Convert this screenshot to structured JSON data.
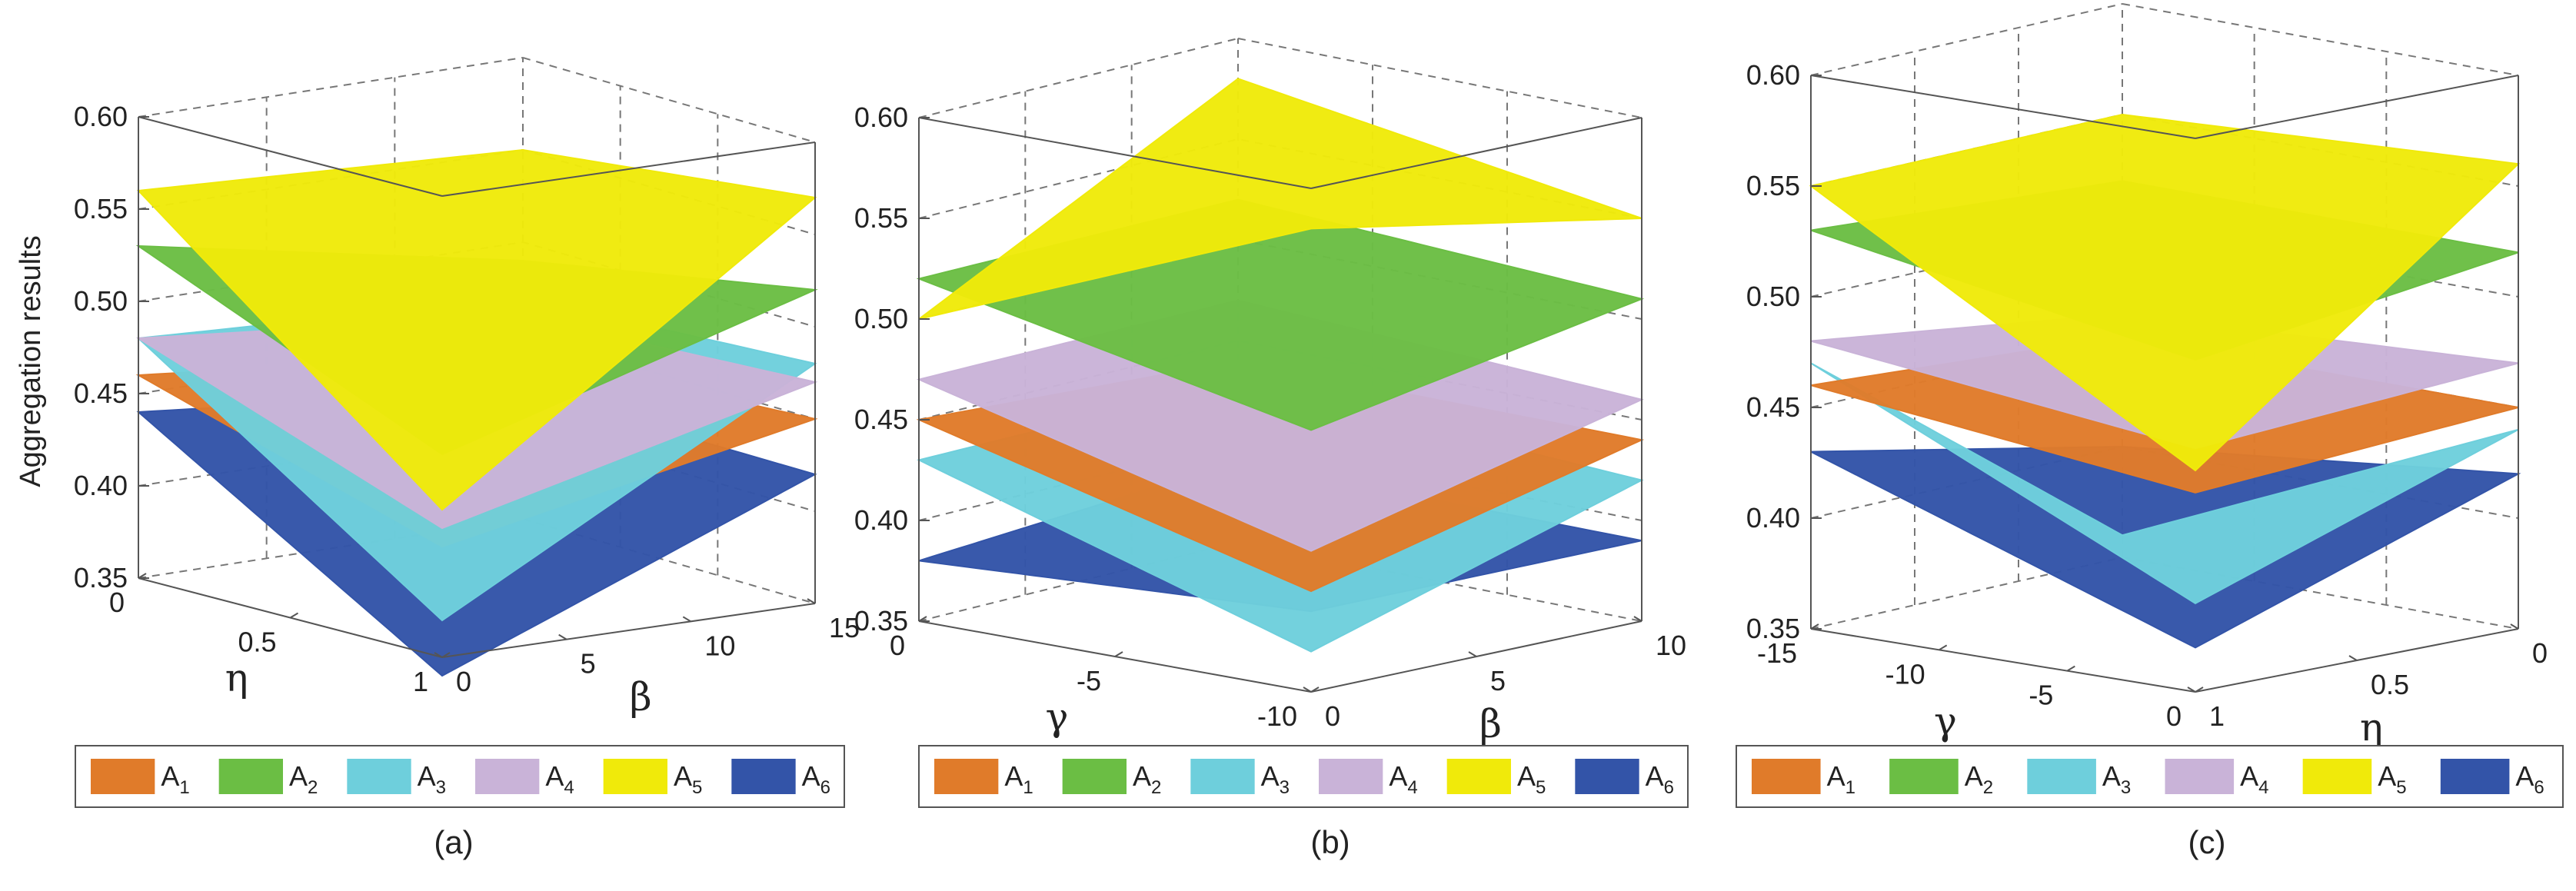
{
  "chart_data": [
    {
      "type": "surface3d",
      "panel": "(a)",
      "title": "",
      "xlabel": "η",
      "ylabel": "β",
      "zlabel": "Aggregation results",
      "x_ticks": [
        "0",
        "0.5",
        "1"
      ],
      "y_ticks": [
        "0",
        "5",
        "10",
        "15"
      ],
      "z_ticks": [
        "0.35",
        "0.40",
        "0.45",
        "0.50",
        "0.55",
        "0.60"
      ],
      "zlim": [
        0.35,
        0.6
      ],
      "legend": [
        "A1",
        "A2",
        "A3",
        "A4",
        "A5",
        "A6"
      ],
      "series": [
        {
          "name": "A1",
          "color": "#e07b2a",
          "corners": [
            0.46,
            0.41,
            0.45,
            0.44
          ]
        },
        {
          "name": "A2",
          "color": "#6bbe44",
          "corners": [
            0.53,
            0.46,
            0.52,
            0.49
          ]
        },
        {
          "name": "A3",
          "color": "#6ecfdc",
          "corners": [
            0.48,
            0.37,
            0.48,
            0.47
          ]
        },
        {
          "name": "A4",
          "color": "#c9b3d8",
          "corners": [
            0.48,
            0.42,
            0.47,
            0.46
          ]
        },
        {
          "name": "A5",
          "color": "#f0ea0a",
          "corners": [
            0.56,
            0.43,
            0.57,
            0.55
          ]
        },
        {
          "name": "A6",
          "color": "#3354a8",
          "corners": [
            0.44,
            0.34,
            0.42,
            0.42
          ]
        }
      ]
    },
    {
      "type": "surface3d",
      "panel": "(b)",
      "title": "",
      "xlabel": "γ",
      "ylabel": "β",
      "zlabel": "",
      "x_ticks": [
        "0",
        "-5",
        "-10"
      ],
      "y_ticks": [
        "0",
        "5",
        "10"
      ],
      "z_ticks": [
        "0.35",
        "0.40",
        "0.45",
        "0.50",
        "0.55",
        "0.60"
      ],
      "zlim": [
        0.35,
        0.6
      ],
      "legend": [
        "A1",
        "A2",
        "A3",
        "A4",
        "A5",
        "A6"
      ],
      "series": [
        {
          "name": "A1",
          "color": "#e07b2a",
          "corners": [
            0.45,
            0.4,
            0.44,
            0.44
          ]
        },
        {
          "name": "A2",
          "color": "#6bbe44",
          "corners": [
            0.52,
            0.48,
            0.51,
            0.52
          ]
        },
        {
          "name": "A3",
          "color": "#6ecfdc",
          "corners": [
            0.43,
            0.37,
            0.42,
            0.43
          ]
        },
        {
          "name": "A4",
          "color": "#c9b3d8",
          "corners": [
            0.47,
            0.42,
            0.46,
            0.47
          ]
        },
        {
          "name": "A5",
          "color": "#f0ea0a",
          "corners": [
            0.5,
            0.58,
            0.55,
            0.58
          ]
        },
        {
          "name": "A6",
          "color": "#3354a8",
          "corners": [
            0.38,
            0.39,
            0.39,
            0.39
          ]
        }
      ]
    },
    {
      "type": "surface3d",
      "panel": "(c)",
      "title": "",
      "xlabel": "γ",
      "ylabel": "η",
      "zlabel": "",
      "x_ticks": [
        "-15",
        "-10",
        "-5",
        "0"
      ],
      "y_ticks": [
        "1",
        "0.5",
        "0"
      ],
      "z_ticks": [
        "0.35",
        "0.40",
        "0.45",
        "0.50",
        "0.55",
        "0.60"
      ],
      "zlim": [
        0.35,
        0.6
      ],
      "legend": [
        "A1",
        "A2",
        "A3",
        "A4",
        "A5",
        "A6"
      ],
      "series": [
        {
          "name": "A1",
          "color": "#e07b2a",
          "corners": [
            0.46,
            0.44,
            0.45,
            0.45
          ]
        },
        {
          "name": "A2",
          "color": "#6bbe44",
          "corners": [
            0.53,
            0.5,
            0.52,
            0.52
          ]
        },
        {
          "name": "A3",
          "color": "#6ecfdc",
          "corners": [
            0.47,
            0.39,
            0.44,
            0.36
          ]
        },
        {
          "name": "A4",
          "color": "#c9b3d8",
          "corners": [
            0.48,
            0.46,
            0.47,
            0.46
          ]
        },
        {
          "name": "A5",
          "color": "#f0ea0a",
          "corners": [
            0.55,
            0.45,
            0.56,
            0.55
          ]
        },
        {
          "name": "A6",
          "color": "#3354a8",
          "corners": [
            0.43,
            0.37,
            0.42,
            0.4
          ]
        }
      ]
    }
  ]
}
